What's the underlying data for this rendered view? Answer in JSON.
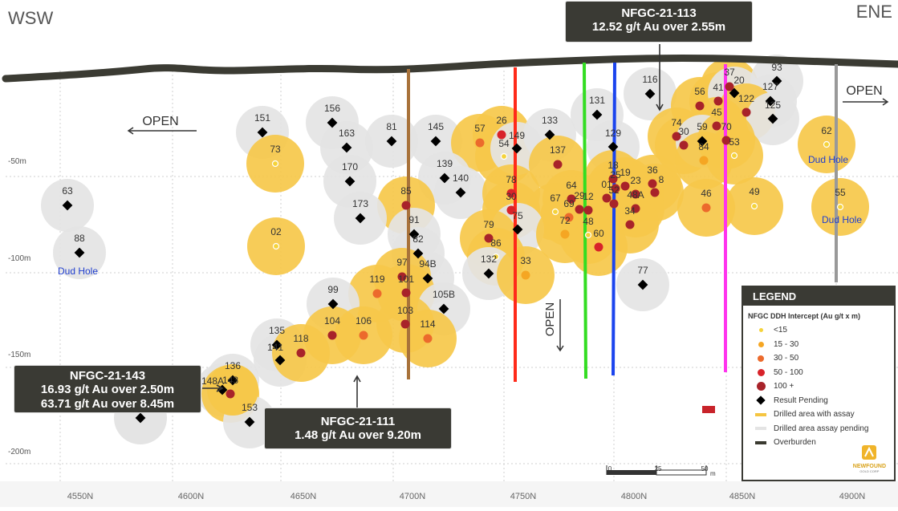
{
  "directions": {
    "left": "WSW",
    "right": "ENE"
  },
  "open_labels": {
    "left": "OPEN",
    "right": "OPEN",
    "vertical": "OPEN"
  },
  "depth_labels": [
    "-50m",
    "-100m",
    "-150m",
    "-200m"
  ],
  "northing_labels": [
    "4550N",
    "4600N",
    "4650N",
    "4700N",
    "4750N",
    "4800N",
    "4850N",
    "4900N"
  ],
  "dud_label": "Dud Hole",
  "callouts": [
    {
      "id": "nfgc-21-113",
      "lines": [
        "NFGC-21-113",
        "12.52 g/t Au over 2.55m"
      ]
    },
    {
      "id": "nfgc-21-143",
      "lines": [
        "NFGC-21-143",
        "16.93 g/t Au over 2.50m",
        "63.71 g/t Au over 8.45m"
      ]
    },
    {
      "id": "nfgc-21-111",
      "lines": [
        "NFGC-21-111",
        "1.48 g/t Au over 9.20m"
      ]
    }
  ],
  "legend": {
    "title": "LEGEND",
    "subtitle": "NFGC DDH Intercept (Au g/t x m)",
    "items": [
      {
        "label": "<15",
        "kind": "dot",
        "color": "#f5d33a"
      },
      {
        "label": "15 - 30",
        "kind": "dot",
        "color": "#f5a623"
      },
      {
        "label": "30 - 50",
        "kind": "dot",
        "color": "#ec6a2c"
      },
      {
        "label": "50 - 100",
        "kind": "dot",
        "color": "#d8232a"
      },
      {
        "label": "100 +",
        "kind": "dot",
        "color": "#a8232a"
      },
      {
        "label": "Result Pending",
        "kind": "diamond",
        "color": "#000000"
      },
      {
        "label": "Drilled area with assay",
        "kind": "bar",
        "color": "#f5c542"
      },
      {
        "label": "Drilled area assay pending",
        "kind": "bar",
        "color": "#e4e4e4"
      },
      {
        "label": "Overburden",
        "kind": "bar",
        "color": "#3a3a30"
      }
    ]
  },
  "scale_bar": {
    "ticks": [
      "0",
      "25",
      "50"
    ],
    "unit": "m"
  },
  "logo": {
    "line1": "NEWFOUND",
    "line2": "GOLD CORP"
  },
  "holes": [
    {
      "label": "151",
      "type": "pending"
    },
    {
      "label": "73",
      "type": "lt15"
    },
    {
      "label": "156",
      "type": "pending"
    },
    {
      "label": "163",
      "type": "pending"
    },
    {
      "label": "81",
      "type": "pending"
    },
    {
      "label": "145",
      "type": "pending"
    },
    {
      "label": "57",
      "type": "g30"
    },
    {
      "label": "26",
      "type": "g50"
    },
    {
      "label": "54",
      "type": "lt15"
    },
    {
      "label": "149",
      "type": "pending"
    },
    {
      "label": "133",
      "type": "pending"
    },
    {
      "label": "131",
      "type": "pending"
    },
    {
      "label": "116",
      "type": "pending"
    },
    {
      "label": "56",
      "type": "g100"
    },
    {
      "label": "37",
      "type": "g100"
    },
    {
      "label": "93",
      "type": "pending"
    },
    {
      "label": "41",
      "type": "g100"
    },
    {
      "label": "20",
      "type": "pending"
    },
    {
      "label": "127",
      "type": "pending"
    },
    {
      "label": "122",
      "type": "g100"
    },
    {
      "label": "125",
      "type": "pending"
    },
    {
      "label": "45",
      "type": "g100"
    },
    {
      "label": "74",
      "type": "g100"
    },
    {
      "label": "30",
      "type": "g100"
    },
    {
      "label": "59",
      "type": "pending"
    },
    {
      "label": "70",
      "type": "g100"
    },
    {
      "label": "84",
      "type": "g15"
    },
    {
      "label": "53",
      "type": "lt15"
    },
    {
      "label": "62",
      "type": "lt15"
    },
    {
      "label": "137",
      "type": "g100"
    },
    {
      "label": "129",
      "type": "pending"
    },
    {
      "label": "18",
      "type": "g100"
    },
    {
      "label": "170",
      "type": "pending"
    },
    {
      "label": "139",
      "type": "pending"
    },
    {
      "label": "140",
      "type": "pending"
    },
    {
      "label": "85",
      "type": "g100"
    },
    {
      "label": "78",
      "type": "g50"
    },
    {
      "label": "36",
      "type": "g100"
    },
    {
      "label": "19",
      "type": "g100"
    },
    {
      "label": "25",
      "type": "g100"
    },
    {
      "label": "23",
      "type": "g100"
    },
    {
      "label": "01",
      "type": "g100"
    },
    {
      "label": "8",
      "type": "g100"
    },
    {
      "label": "64",
      "type": "g100"
    },
    {
      "label": "29",
      "type": "g100"
    },
    {
      "label": "46",
      "type": "g30"
    },
    {
      "label": "49",
      "type": "lt15"
    },
    {
      "label": "55",
      "type": "lt15"
    },
    {
      "label": "63",
      "type": "pending"
    },
    {
      "label": "173",
      "type": "pending"
    },
    {
      "label": "30",
      "type": "g50"
    },
    {
      "label": "67",
      "type": "lt15"
    },
    {
      "label": "69",
      "type": "g30"
    },
    {
      "label": "12",
      "type": "g100"
    },
    {
      "label": "52",
      "type": "g100"
    },
    {
      "label": "48A",
      "type": "g100"
    },
    {
      "label": "91",
      "type": "pending"
    },
    {
      "label": "75",
      "type": "pending"
    },
    {
      "label": "72",
      "type": "g15"
    },
    {
      "label": "48",
      "type": "lt15"
    },
    {
      "label": "34",
      "type": "g100"
    },
    {
      "label": "79",
      "type": "g100"
    },
    {
      "label": "88",
      "type": "pending"
    },
    {
      "label": "02",
      "type": "lt15"
    },
    {
      "label": "82",
      "type": "pending"
    },
    {
      "label": "86",
      "type": "lt15"
    },
    {
      "label": "60",
      "type": "g50"
    },
    {
      "label": "132",
      "type": "pending"
    },
    {
      "label": "33",
      "type": "g15"
    },
    {
      "label": "94B",
      "type": "pending"
    },
    {
      "label": "97",
      "type": "g100"
    },
    {
      "label": "101",
      "type": "g100"
    },
    {
      "label": "119",
      "type": "g30"
    },
    {
      "label": "77",
      "type": "pending"
    },
    {
      "label": "99",
      "type": "pending"
    },
    {
      "label": "105B",
      "type": "pending"
    },
    {
      "label": "103",
      "type": "g100"
    },
    {
      "label": "104",
      "type": "g100"
    },
    {
      "label": "106",
      "type": "g30"
    },
    {
      "label": "114",
      "type": "g30"
    },
    {
      "label": "135",
      "type": "pending"
    },
    {
      "label": "141",
      "type": "pending"
    },
    {
      "label": "118",
      "type": "g100"
    },
    {
      "label": "136",
      "type": "pending"
    },
    {
      "label": "148A",
      "type": "pending"
    },
    {
      "label": "143",
      "type": "g100"
    },
    {
      "label": "153",
      "type": "pending"
    }
  ]
}
